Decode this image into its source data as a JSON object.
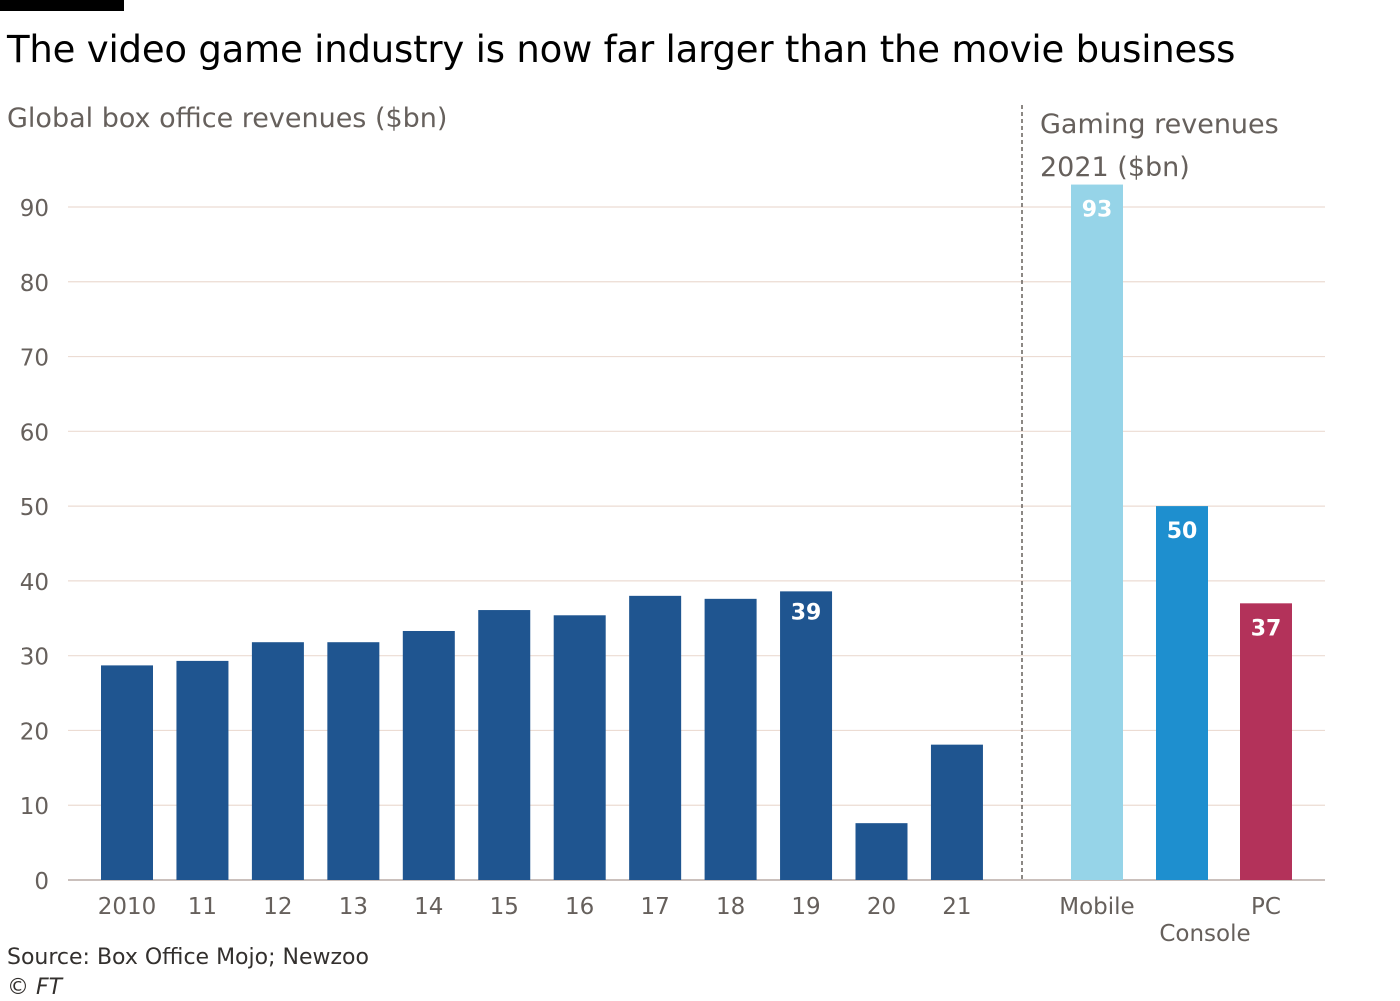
{
  "title": "The video game industry is now far larger than the movie business",
  "source": "Source: Box Office Mojo; Newzoo",
  "copyright": "© FT",
  "chart_data": [
    {
      "type": "bar",
      "title": "Global box office revenues ($bn)",
      "categories": [
        "2010",
        "11",
        "12",
        "13",
        "14",
        "15",
        "16",
        "17",
        "18",
        "19",
        "20",
        "21"
      ],
      "values": [
        28.7,
        29.3,
        31.8,
        31.8,
        33.3,
        36.1,
        35.4,
        38.0,
        37.6,
        38.6,
        7.6,
        18.1
      ],
      "data_labels": [
        {
          "category": "19",
          "label": "39"
        }
      ],
      "ylim": [
        0,
        90
      ],
      "yticks": [
        0,
        10,
        20,
        30,
        40,
        50,
        60,
        70,
        80,
        90
      ],
      "grid": true,
      "color": "#1f5590"
    },
    {
      "type": "bar",
      "title_lines": [
        "Gaming revenues",
        "2021 ($bn)"
      ],
      "categories": [
        "Mobile",
        "Console",
        "PC"
      ],
      "values": [
        93,
        50,
        37
      ],
      "data_labels": [
        "93",
        "50",
        "37"
      ],
      "colors": [
        "#96d4e8",
        "#1e8fcf",
        "#b3325a"
      ],
      "ylim": [
        0,
        90
      ],
      "grid": true
    }
  ]
}
